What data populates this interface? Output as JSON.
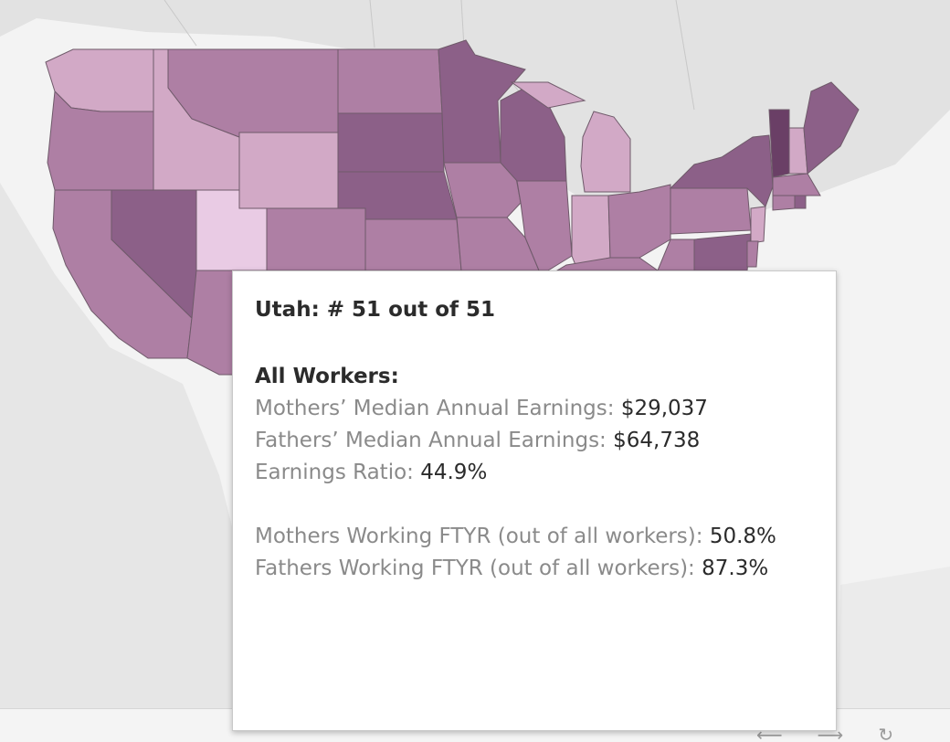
{
  "colors": {
    "water": "#f2f2f2",
    "land": "#e0e0e0",
    "scale_light": "#e9cbe4",
    "scale_dark": "#7a4f77",
    "selected_outline": "#000000"
  },
  "tooltip": {
    "title": "Utah: # 51 out of 51",
    "section": "All Workers:",
    "rows": [
      {
        "label": "Mothers’ Median Annual Earnings: ",
        "value": "$29,037"
      },
      {
        "label": "Fathers’ Median Annual Earnings: ",
        "value": "$64,738"
      },
      {
        "label": "Earnings Ratio: ",
        "value": "44.9%"
      }
    ],
    "ftyr_rows": [
      {
        "label": "Mothers Working FTYR (out of all workers): ",
        "value": "50.8%"
      },
      {
        "label": "Fathers Working FTYR (out of all workers): ",
        "value": "87.3%"
      }
    ]
  },
  "map": {
    "selected_state": "Utah",
    "nav_icons": [
      "back-arrow-icon",
      "forward-arrow-icon",
      "reset-icon"
    ]
  }
}
